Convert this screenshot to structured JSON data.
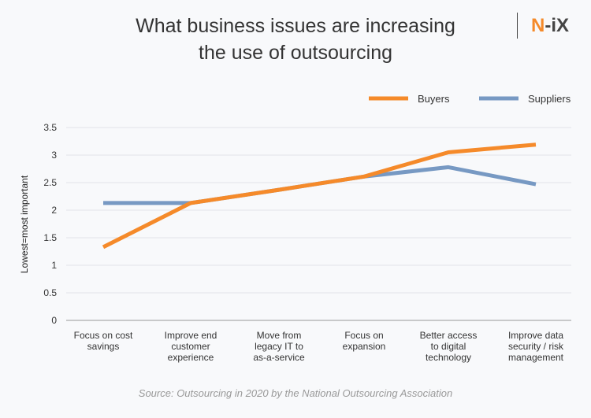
{
  "title_lines": [
    "What business issues are increasing",
    "the use of outsourcing"
  ],
  "logo": {
    "n": "N",
    "rest": "-iX"
  },
  "source": "Source: Outsourcing in 2020 by the National Outsourcing Association",
  "chart_data": {
    "type": "line",
    "title": "What business issues are increasing the use of outsourcing",
    "ylabel": "Lowest=most important",
    "ylim": [
      0,
      3.5
    ],
    "yticks": [
      "0",
      "0.5",
      "1",
      "1.5",
      "2",
      "2.5",
      "3",
      "3.5"
    ],
    "grid": true,
    "legend": "top-right",
    "categories": [
      [
        "Focus on cost",
        "savings"
      ],
      [
        "Improve end",
        "customer",
        "experience"
      ],
      [
        "Move from",
        "legacy IT to",
        "as-a-service"
      ],
      [
        "Focus on",
        "expansion"
      ],
      [
        "Better access",
        "to digital",
        "technology"
      ],
      [
        "Improve data",
        "security / risk",
        "management"
      ]
    ],
    "series": [
      {
        "name": "Buyers",
        "color": "#f58a2a",
        "values": [
          1.33,
          2.13,
          2.37,
          2.61,
          3.05,
          3.19
        ]
      },
      {
        "name": "Suppliers",
        "color": "#7799c3",
        "values": [
          2.13,
          2.13,
          2.37,
          2.61,
          2.78,
          2.47
        ]
      }
    ]
  }
}
